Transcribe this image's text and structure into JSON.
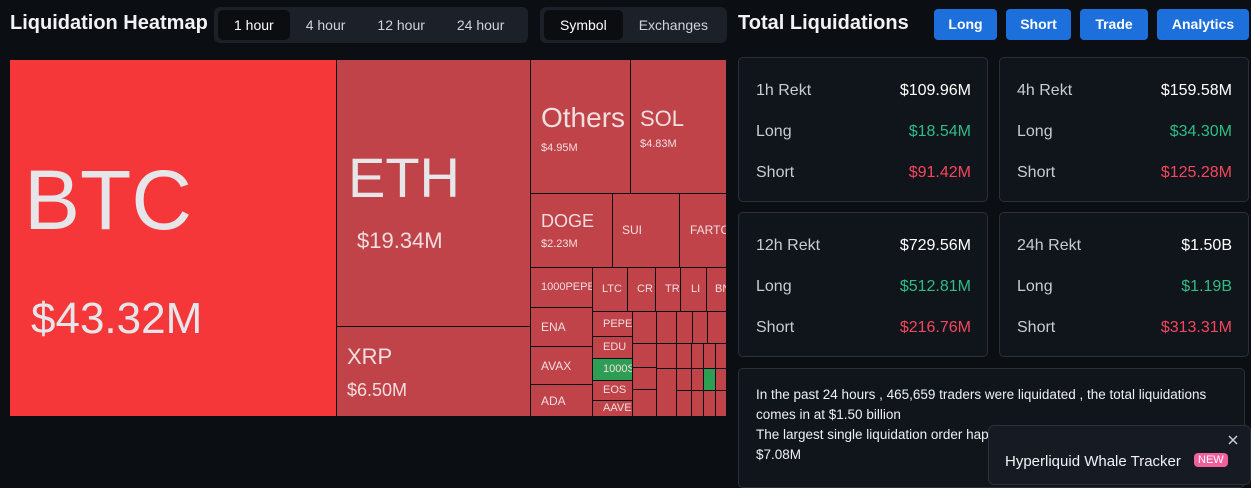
{
  "header": {
    "title": "Liquidation Heatmap",
    "time_tabs": [
      "1 hour",
      "4 hour",
      "12 hour",
      "24 hour"
    ],
    "view_tabs": [
      "Symbol",
      "Exchanges"
    ]
  },
  "treemap": {
    "cells": [
      {
        "label": "BTC",
        "value": "$43.32M"
      },
      {
        "label": "ETH",
        "value": "$19.34M"
      },
      {
        "label": "XRP",
        "value": "$6.50M"
      },
      {
        "label": "Others",
        "value": "$4.95M"
      },
      {
        "label": "SOL",
        "value": "$4.83M"
      },
      {
        "label": "DOGE",
        "value": "$2.23M"
      },
      {
        "label": "SUI"
      },
      {
        "label": "FARTC"
      },
      {
        "label": "1000PEPE"
      },
      {
        "label": "ENA"
      },
      {
        "label": "AVAX"
      },
      {
        "label": "ADA"
      },
      {
        "label": "LTC"
      },
      {
        "label": "CR"
      },
      {
        "label": "TR"
      },
      {
        "label": "LI"
      },
      {
        "label": "BN"
      },
      {
        "label": "PEPE"
      },
      {
        "label": "EDU"
      },
      {
        "label": "1000S"
      },
      {
        "label": "EOS"
      },
      {
        "label": "AAVE"
      }
    ]
  },
  "summary": {
    "title": "Total Liquidations",
    "buttons": [
      "Long",
      "Short",
      "Trade",
      "Analytics"
    ]
  },
  "cards": [
    {
      "label": "1h Rekt",
      "total": "$109.96M",
      "long_label": "Long",
      "long": "$18.54M",
      "short_label": "Short",
      "short": "$91.42M"
    },
    {
      "label": "4h Rekt",
      "total": "$159.58M",
      "long_label": "Long",
      "long": "$34.30M",
      "short_label": "Short",
      "short": "$125.28M"
    },
    {
      "label": "12h Rekt",
      "total": "$729.56M",
      "long_label": "Long",
      "long": "$512.81M",
      "short_label": "Short",
      "short": "$216.76M"
    },
    {
      "label": "24h Rekt",
      "total": "$1.50B",
      "long_label": "Long",
      "long": "$1.19B",
      "short_label": "Short",
      "short": "$313.31M"
    }
  ],
  "note": {
    "lines": [
      "In the past 24 hours , 465,659 traders were liquidated , the total liquidations comes in at $1.50 billion",
      "The largest single liquidation order hap",
      "$7.08M"
    ]
  },
  "popup": {
    "title": "Hyperliquid Whale Tracker",
    "badge": "NEW"
  }
}
